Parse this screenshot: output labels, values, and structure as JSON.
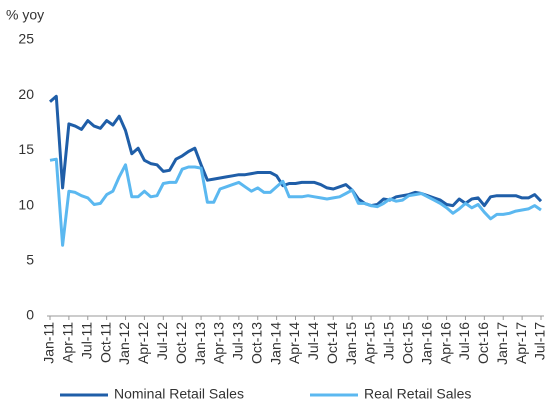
{
  "chart_data": {
    "type": "line",
    "ylabel": "% yoy",
    "categories": [
      "Jan-11",
      null,
      null,
      "Apr-11",
      null,
      null,
      "Jul-11",
      null,
      null,
      "Oct-11",
      null,
      null,
      "Jan-12",
      null,
      null,
      "Apr-12",
      null,
      null,
      "Jul-12",
      null,
      null,
      "Oct-12",
      null,
      null,
      "Jan-13",
      null,
      null,
      "Apr-13",
      null,
      null,
      "Jul-13",
      null,
      null,
      "Oct-13",
      null,
      null,
      "Jan-14",
      null,
      null,
      "Apr-14",
      null,
      null,
      "Jul-14",
      null,
      null,
      "Oct-14",
      null,
      null,
      "Jan-15",
      null,
      null,
      "Apr-15",
      null,
      null,
      "Jul-15",
      null,
      null,
      "Oct-15",
      null,
      null,
      "Jan-16",
      null,
      null,
      "Apr-16",
      null,
      null,
      "Jul-16",
      null,
      null,
      "Oct-16",
      null,
      null,
      "Jan-17",
      null,
      null,
      "Apr-17",
      null,
      null,
      "Jul-17"
    ],
    "series": [
      {
        "name": "Nominal Retail Sales",
        "color": "#1f5ea8",
        "values": [
          19.4,
          19.9,
          11.6,
          17.4,
          17.2,
          16.9,
          17.7,
          17.2,
          17.0,
          17.7,
          17.3,
          18.1,
          16.8,
          14.7,
          15.2,
          14.1,
          13.8,
          13.7,
          13.1,
          13.2,
          14.2,
          14.5,
          14.9,
          15.2,
          13.7,
          12.3,
          12.4,
          12.5,
          12.6,
          12.7,
          12.8,
          12.8,
          12.9,
          13.0,
          13.0,
          13.0,
          12.7,
          11.8,
          12.0,
          12.0,
          12.1,
          12.1,
          12.1,
          11.9,
          11.6,
          11.5,
          11.7,
          11.9,
          11.4,
          10.6,
          10.2,
          10.0,
          10.1,
          10.6,
          10.5,
          10.8,
          10.9,
          11.0,
          11.2,
          11.1,
          10.9,
          10.7,
          10.5,
          10.1,
          10.0,
          10.6,
          10.2,
          10.6,
          10.7,
          10.0,
          10.8,
          10.9,
          10.9,
          10.9,
          10.9,
          10.7,
          10.7,
          11.0,
          10.4
        ]
      },
      {
        "name": "Real Retail Sales",
        "color": "#5bb8f0",
        "values": [
          14.1,
          14.2,
          6.4,
          11.3,
          11.2,
          10.9,
          10.7,
          10.1,
          10.2,
          11.0,
          11.3,
          12.6,
          13.7,
          10.8,
          10.8,
          11.3,
          10.8,
          10.9,
          12.0,
          12.1,
          12.1,
          13.3,
          13.5,
          13.5,
          13.4,
          10.3,
          10.3,
          11.5,
          11.7,
          11.9,
          12.1,
          11.7,
          11.3,
          11.6,
          11.2,
          11.2,
          11.7,
          12.2,
          10.8,
          10.8,
          10.8,
          10.9,
          10.8,
          10.7,
          10.6,
          10.7,
          10.8,
          11.1,
          11.4,
          10.2,
          10.2,
          10.0,
          9.9,
          10.2,
          10.6,
          10.4,
          10.5,
          10.9,
          11.0,
          11.1,
          10.8,
          10.5,
          10.2,
          9.8,
          9.3,
          9.7,
          10.2,
          9.8,
          10.1,
          9.4,
          8.8,
          9.2,
          9.2,
          9.3,
          9.5,
          9.6,
          9.7,
          10.0,
          9.6
        ]
      }
    ],
    "ylim": [
      0,
      25
    ],
    "yticks": [
      0,
      5,
      10,
      15,
      20,
      25
    ],
    "grid": false,
    "legend": "bottom"
  }
}
